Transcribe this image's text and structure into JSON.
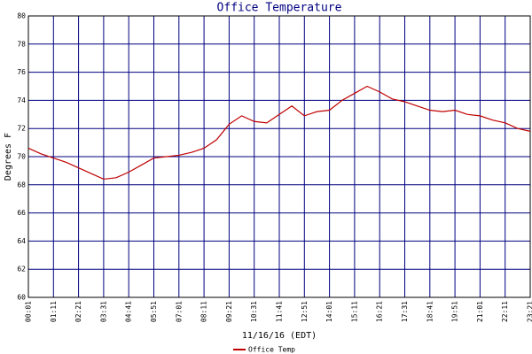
{
  "chart_data": {
    "type": "line",
    "title": "Office Temperature",
    "x_label": "11/16/16 (EDT)",
    "y_label": "Degrees F",
    "categories": [
      "00:01",
      null,
      "01:11",
      null,
      "02:21",
      null,
      "03:31",
      null,
      "04:41",
      null,
      "05:51",
      null,
      "07:01",
      null,
      "08:11",
      null,
      "09:21",
      null,
      "10:31",
      null,
      "11:41",
      null,
      "12:51",
      null,
      "14:01",
      null,
      "15:11",
      null,
      "16:21",
      null,
      "17:31",
      null,
      "18:41",
      null,
      "19:51",
      null,
      "21:01",
      null,
      "22:11",
      null,
      "23:21"
    ],
    "series": [
      {
        "name": "Office Temp",
        "color": "#c00000",
        "values": [
          70.6,
          70.2,
          69.9,
          69.6,
          69.2,
          68.8,
          68.4,
          68.5,
          68.9,
          69.4,
          69.9,
          70.0,
          70.1,
          70.3,
          70.6,
          71.2,
          72.3,
          72.9,
          72.5,
          72.4,
          73.0,
          73.6,
          72.9,
          73.2,
          73.3,
          74.0,
          74.5,
          75.0,
          74.6,
          74.1,
          73.9,
          73.6,
          73.3,
          73.2,
          73.3,
          73.0,
          72.9,
          72.6,
          72.4,
          72.0,
          71.8
        ]
      }
    ],
    "ylim": [
      60,
      80
    ],
    "yticks": [
      60,
      62,
      64,
      66,
      68,
      70,
      72,
      74,
      76,
      78,
      80
    ],
    "grid": true,
    "legend": "bottom-left"
  }
}
